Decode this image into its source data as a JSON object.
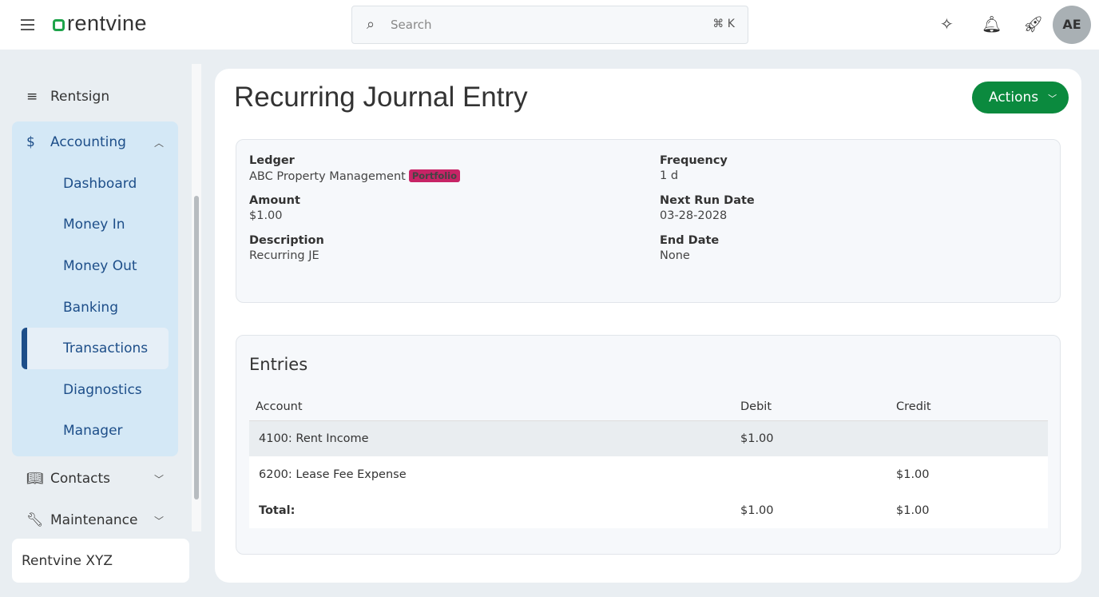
{
  "header": {
    "logo": "rentvine",
    "search_placeholder": "Search",
    "shortcut": "⌘ K",
    "avatar": "AE"
  },
  "sidebar": {
    "rentsign": "Rentsign",
    "accounting": "Accounting",
    "sub": [
      "Dashboard",
      "Money In",
      "Money Out",
      "Banking",
      "Transactions",
      "Diagnostics",
      "Manager"
    ],
    "active": "Transactions",
    "contacts": "Contacts",
    "maintenance": "Maintenance",
    "org": "Rentvine XYZ"
  },
  "page": {
    "title": "Recurring Journal Entry",
    "actions": "Actions"
  },
  "details": {
    "ledger_label": "Ledger",
    "ledger": "ABC Property Management",
    "badge": "Portfolio",
    "amount_label": "Amount",
    "amount": "$1.00",
    "description_label": "Description",
    "description": "Recurring JE",
    "frequency_label": "Frequency",
    "frequency": "1 d",
    "next_run_label": "Next Run Date",
    "next_run": "03-28-2028",
    "end_label": "End Date",
    "end": "None"
  },
  "entries": {
    "title": "Entries",
    "headers": [
      "Account",
      "Debit",
      "Credit"
    ],
    "rows": [
      [
        "4100: Rent Income",
        "$1.00",
        ""
      ],
      [
        "6200: Lease Fee Expense",
        "",
        "$1.00"
      ]
    ],
    "total": [
      "Total:",
      "$1.00",
      "$1.00"
    ]
  },
  "colors": {
    "primary": "#0b8a3e",
    "badge": "#c72466",
    "nav": "#1d4e89"
  }
}
